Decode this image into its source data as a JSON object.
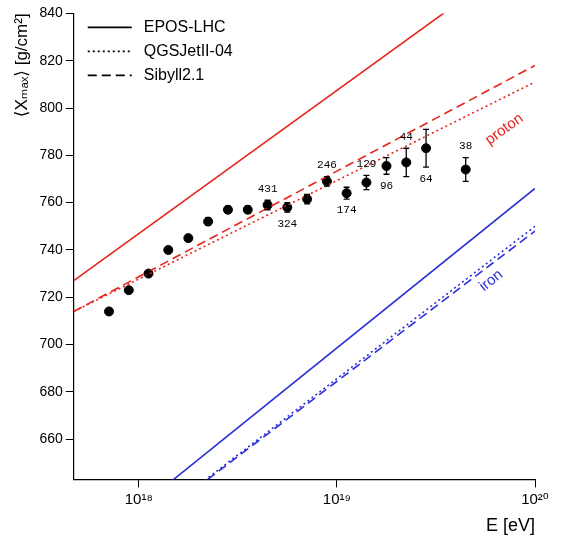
{
  "chart_data": {
    "type": "scatter",
    "y_label": "⟨Xₘₐₓ⟩ [g/cm²]",
    "x_label": "E [eV]",
    "log": "x",
    "grid": false,
    "legend": "upper left",
    "xlim": [
      4.7e+17,
      1e+20
    ],
    "xticks": [
      {
        "value": 1e+18,
        "label": "10¹⁸"
      },
      {
        "value": 1e+19,
        "label": "10¹⁹"
      },
      {
        "value": 1e+20,
        "label": "10²⁰"
      }
    ],
    "ylim": [
      643,
      840
    ],
    "yticks": [
      660,
      680,
      700,
      720,
      740,
      760,
      780,
      800,
      820,
      840
    ],
    "primaries": [
      {
        "name": "proton",
        "color": "#e8231c",
        "label_x": 7e+19,
        "label_y": 791
      },
      {
        "name": "iron",
        "color": "#2a2fd8",
        "label_x": 6e+19,
        "label_y": 727
      }
    ],
    "line_x": [
      4.7e+17,
      1e+20
    ],
    "series": [
      {
        "name": "EPOS-LHC",
        "type": "line",
        "line_style": "solid",
        "proton": [
          727,
          868
        ],
        "iron": [
          609,
          766
        ]
      },
      {
        "name": "QGSJetII-04",
        "type": "line",
        "line_style": "dotted",
        "proton": [
          714,
          811
        ],
        "iron": [
          600,
          750
        ]
      },
      {
        "name": "Sibyll2.1",
        "type": "line",
        "line_style": "dashed",
        "proton": [
          714,
          818
        ],
        "iron": [
          600,
          748
        ]
      }
    ],
    "points": {
      "type": "scatter",
      "marker": "circle",
      "color": "#000000",
      "x": [
        7.08e+17,
        8.91e+17,
        1.12e+18,
        1.41e+18,
        1.78e+18,
        2.24e+18,
        2.82e+18,
        3.55e+18,
        4.47e+18,
        5.62e+18,
        7.08e+18,
        8.91e+18,
        1.12e+19,
        1.41e+19,
        1.78e+19,
        2.24e+19,
        2.82e+19,
        4.47e+19
      ],
      "values": [
        714,
        723,
        730,
        740,
        745,
        752,
        757,
        757,
        759,
        758,
        761.5,
        769,
        764,
        768.5,
        775.5,
        777,
        783,
        774
      ],
      "errors": [
        1,
        1,
        1,
        1,
        1,
        1.5,
        1.5,
        1.5,
        2,
        2,
        2,
        2,
        2.5,
        3,
        3.5,
        6,
        8,
        5
      ],
      "event_counts": [
        null,
        null,
        null,
        null,
        null,
        null,
        null,
        null,
        431,
        324,
        null,
        246,
        174,
        129,
        96,
        44,
        64,
        38
      ]
    }
  }
}
